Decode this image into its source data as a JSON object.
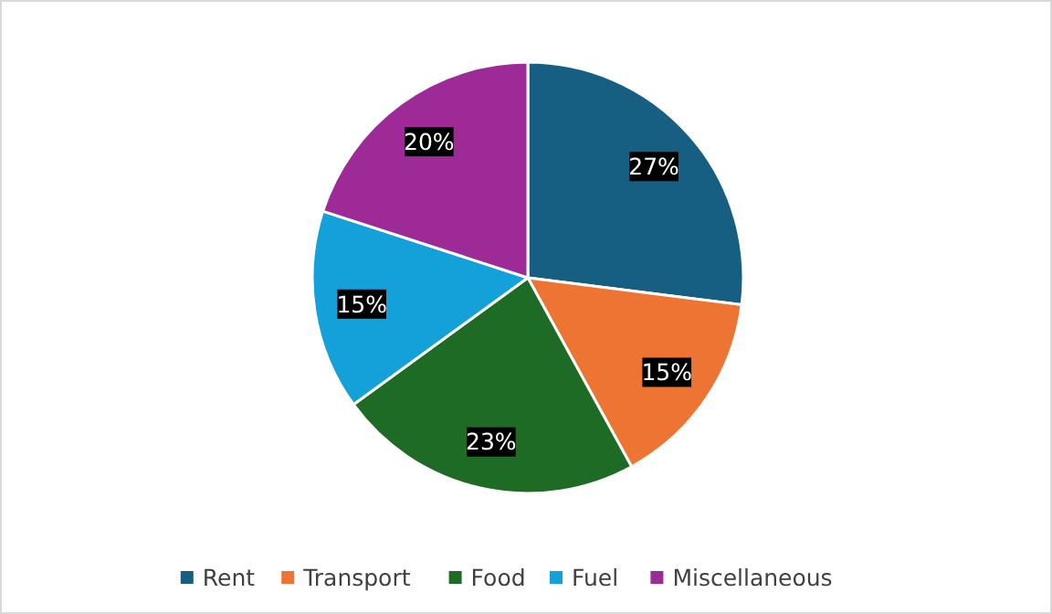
{
  "chart_data": {
    "type": "pie",
    "categories": [
      "Rent",
      "Transport",
      "Food",
      "Fuel",
      "Miscellaneous"
    ],
    "values": [
      27,
      15,
      23,
      15,
      20
    ],
    "colors": [
      "#175f82",
      "#ed7433",
      "#1e6b25",
      "#14a0d9",
      "#9e2a98"
    ],
    "value_labels": [
      "27%",
      "15%",
      "23%",
      "15%",
      "20%"
    ],
    "legend": "bottom"
  }
}
